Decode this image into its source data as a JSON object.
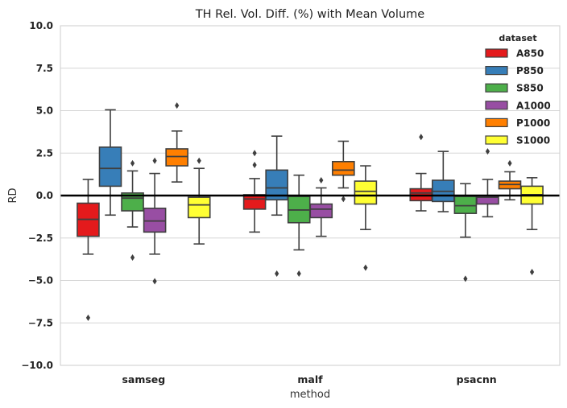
{
  "chart_data": {
    "type": "box",
    "title": "TH Rel. Vol. Diff. (%) with Mean Volume",
    "xlabel": "method",
    "ylabel": "RD",
    "ylim": [
      -10,
      10
    ],
    "yticks": [
      -10,
      -7.5,
      -5,
      -2.5,
      0,
      2.5,
      5,
      7.5,
      10
    ],
    "ytick_labels": [
      "−10.0",
      "−7.5",
      "−5.0",
      "−2.5",
      "0.0",
      "2.5",
      "5.0",
      "7.5",
      "10.0"
    ],
    "reference_line_y": 0,
    "grid": "horizontal",
    "categories": [
      "samseg",
      "malf",
      "psacnn"
    ],
    "legend": {
      "title": "dataset",
      "position": "top-right",
      "entries": [
        "A850",
        "P850",
        "S850",
        "A1000",
        "P1000",
        "S1000"
      ]
    },
    "series": [
      {
        "name": "A850",
        "color": "#e41a1c",
        "boxes": [
          {
            "whislo": -3.45,
            "q1": -2.4,
            "med": -1.4,
            "q3": -0.45,
            "whishi": 0.95,
            "fliers": [
              -7.2
            ]
          },
          {
            "whislo": -2.15,
            "q1": -0.8,
            "med": -0.2,
            "q3": 0.05,
            "whishi": 1.0,
            "fliers": [
              1.8,
              2.5
            ]
          },
          {
            "whislo": -0.9,
            "q1": -0.3,
            "med": 0.15,
            "q3": 0.4,
            "whishi": 1.3,
            "fliers": [
              3.45
            ]
          }
        ]
      },
      {
        "name": "P850",
        "color": "#377eb8",
        "boxes": [
          {
            "whislo": -1.15,
            "q1": 0.55,
            "med": 1.6,
            "q3": 2.85,
            "whishi": 5.05,
            "fliers": []
          },
          {
            "whislo": -1.15,
            "q1": -0.25,
            "med": 0.45,
            "q3": 1.5,
            "whishi": 3.5,
            "fliers": [
              -4.6
            ]
          },
          {
            "whislo": -0.95,
            "q1": -0.35,
            "med": 0.25,
            "q3": 0.9,
            "whishi": 2.6,
            "fliers": []
          }
        ]
      },
      {
        "name": "S850",
        "color": "#4daf4a",
        "boxes": [
          {
            "whislo": -1.85,
            "q1": -0.9,
            "med": -0.15,
            "q3": 0.15,
            "whishi": 1.45,
            "fliers": [
              -3.65,
              1.9
            ]
          },
          {
            "whislo": -3.2,
            "q1": -1.6,
            "med": -0.85,
            "q3": -0.05,
            "whishi": 1.2,
            "fliers": [
              -4.6
            ]
          },
          {
            "whislo": -2.45,
            "q1": -1.05,
            "med": -0.6,
            "q3": -0.05,
            "whishi": 0.7,
            "fliers": [
              -4.9
            ]
          }
        ]
      },
      {
        "name": "A1000",
        "color": "#984ea3",
        "boxes": [
          {
            "whislo": -3.45,
            "q1": -2.15,
            "med": -1.5,
            "q3": -0.75,
            "whishi": 1.3,
            "fliers": [
              -5.05,
              2.05
            ]
          },
          {
            "whislo": -2.4,
            "q1": -1.3,
            "med": -0.8,
            "q3": -0.5,
            "whishi": 0.45,
            "fliers": [
              0.9
            ]
          },
          {
            "whislo": -1.25,
            "q1": -0.5,
            "med": -0.1,
            "q3": 0.0,
            "whishi": 0.95,
            "fliers": [
              2.6
            ]
          }
        ]
      },
      {
        "name": "P1000",
        "color": "#ff7f00",
        "boxes": [
          {
            "whislo": 0.8,
            "q1": 1.75,
            "med": 2.3,
            "q3": 2.75,
            "whishi": 3.8,
            "fliers": [
              5.3
            ]
          },
          {
            "whislo": 0.45,
            "q1": 1.2,
            "med": 1.5,
            "q3": 2.0,
            "whishi": 3.2,
            "fliers": [
              -0.2
            ]
          },
          {
            "whislo": -0.25,
            "q1": 0.4,
            "med": 0.65,
            "q3": 0.85,
            "whishi": 1.4,
            "fliers": [
              1.9
            ]
          }
        ]
      },
      {
        "name": "S1000",
        "color": "#ffff33",
        "boxes": [
          {
            "whislo": -2.85,
            "q1": -1.3,
            "med": -0.55,
            "q3": -0.1,
            "whishi": 1.6,
            "fliers": [
              2.05
            ]
          },
          {
            "whislo": -2.0,
            "q1": -0.5,
            "med": 0.25,
            "q3": 0.85,
            "whishi": 1.75,
            "fliers": [
              -4.25
            ]
          },
          {
            "whislo": -2.0,
            "q1": -0.5,
            "med": 0.05,
            "q3": 0.55,
            "whishi": 1.05,
            "fliers": [
              -4.5
            ]
          }
        ]
      }
    ]
  }
}
